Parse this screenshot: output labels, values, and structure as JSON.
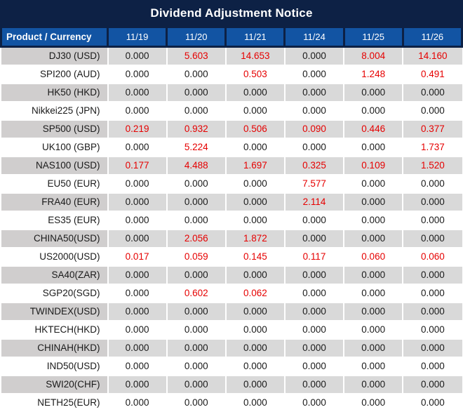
{
  "title": "Dividend Adjustment Notice",
  "colors": {
    "banner_bg": "#0d2145",
    "header_bg": "#1254a3",
    "row_gray": "#d9d9d9",
    "label_gray": "#d0cece",
    "red": "#e60000",
    "text": "#1a1a1a"
  },
  "chart_data": {
    "type": "table",
    "title": "Dividend Adjustment Notice",
    "columns": [
      "Product / Currency",
      "11/19",
      "11/20",
      "11/21",
      "11/24",
      "11/25",
      "11/26"
    ],
    "highlight_color": "#e60000",
    "highlight_meaning": "non-zero dividend adjustment values shown in red",
    "rows": [
      {
        "product": "DJ30 (USD)",
        "values": [
          "0.000",
          "5.603",
          "14.653",
          "0.000",
          "8.004",
          "14.160"
        ],
        "red": [
          false,
          true,
          true,
          false,
          true,
          true
        ]
      },
      {
        "product": "SPI200 (AUD)",
        "values": [
          "0.000",
          "0.000",
          "0.503",
          "0.000",
          "1.248",
          "0.491"
        ],
        "red": [
          false,
          false,
          true,
          false,
          true,
          true
        ]
      },
      {
        "product": "HK50 (HKD)",
        "values": [
          "0.000",
          "0.000",
          "0.000",
          "0.000",
          "0.000",
          "0.000"
        ],
        "red": [
          false,
          false,
          false,
          false,
          false,
          false
        ]
      },
      {
        "product": "Nikkei225 (JPN)",
        "values": [
          "0.000",
          "0.000",
          "0.000",
          "0.000",
          "0.000",
          "0.000"
        ],
        "red": [
          false,
          false,
          false,
          false,
          false,
          false
        ]
      },
      {
        "product": "SP500 (USD)",
        "values": [
          "0.219",
          "0.932",
          "0.506",
          "0.090",
          "0.446",
          "0.377"
        ],
        "red": [
          true,
          true,
          true,
          true,
          true,
          true
        ]
      },
      {
        "product": "UK100 (GBP)",
        "values": [
          "0.000",
          "5.224",
          "0.000",
          "0.000",
          "0.000",
          "1.737"
        ],
        "red": [
          false,
          true,
          false,
          false,
          false,
          true
        ]
      },
      {
        "product": "NAS100 (USD)",
        "values": [
          "0.177",
          "4.488",
          "1.697",
          "0.325",
          "0.109",
          "1.520"
        ],
        "red": [
          true,
          true,
          true,
          true,
          true,
          true
        ]
      },
      {
        "product": "EU50 (EUR)",
        "values": [
          "0.000",
          "0.000",
          "0.000",
          "7.577",
          "0.000",
          "0.000"
        ],
        "red": [
          false,
          false,
          false,
          true,
          false,
          false
        ]
      },
      {
        "product": "FRA40 (EUR)",
        "values": [
          "0.000",
          "0.000",
          "0.000",
          "2.114",
          "0.000",
          "0.000"
        ],
        "red": [
          false,
          false,
          false,
          true,
          false,
          false
        ]
      },
      {
        "product": "ES35 (EUR)",
        "values": [
          "0.000",
          "0.000",
          "0.000",
          "0.000",
          "0.000",
          "0.000"
        ],
        "red": [
          false,
          false,
          false,
          false,
          false,
          false
        ]
      },
      {
        "product": "CHINA50(USD)",
        "values": [
          "0.000",
          "2.056",
          "1.872",
          "0.000",
          "0.000",
          "0.000"
        ],
        "red": [
          false,
          true,
          true,
          false,
          false,
          false
        ]
      },
      {
        "product": "US2000(USD)",
        "values": [
          "0.017",
          "0.059",
          "0.145",
          "0.117",
          "0.060",
          "0.060"
        ],
        "red": [
          true,
          true,
          true,
          true,
          true,
          true
        ]
      },
      {
        "product": "SA40(ZAR)",
        "values": [
          "0.000",
          "0.000",
          "0.000",
          "0.000",
          "0.000",
          "0.000"
        ],
        "red": [
          false,
          false,
          false,
          false,
          false,
          false
        ]
      },
      {
        "product": "SGP20(SGD)",
        "values": [
          "0.000",
          "0.602",
          "0.062",
          "0.000",
          "0.000",
          "0.000"
        ],
        "red": [
          false,
          true,
          true,
          false,
          false,
          false
        ]
      },
      {
        "product": "TWINDEX(USD)",
        "values": [
          "0.000",
          "0.000",
          "0.000",
          "0.000",
          "0.000",
          "0.000"
        ],
        "red": [
          false,
          false,
          false,
          false,
          false,
          false
        ]
      },
      {
        "product": "HKTECH(HKD)",
        "values": [
          "0.000",
          "0.000",
          "0.000",
          "0.000",
          "0.000",
          "0.000"
        ],
        "red": [
          false,
          false,
          false,
          false,
          false,
          false
        ]
      },
      {
        "product": "CHINAH(HKD)",
        "values": [
          "0.000",
          "0.000",
          "0.000",
          "0.000",
          "0.000",
          "0.000"
        ],
        "red": [
          false,
          false,
          false,
          false,
          false,
          false
        ]
      },
      {
        "product": "IND50(USD)",
        "values": [
          "0.000",
          "0.000",
          "0.000",
          "0.000",
          "0.000",
          "0.000"
        ],
        "red": [
          false,
          false,
          false,
          false,
          false,
          false
        ]
      },
      {
        "product": "SWI20(CHF)",
        "values": [
          "0.000",
          "0.000",
          "0.000",
          "0.000",
          "0.000",
          "0.000"
        ],
        "red": [
          false,
          false,
          false,
          false,
          false,
          false
        ]
      },
      {
        "product": "NETH25(EUR)",
        "values": [
          "0.000",
          "0.000",
          "0.000",
          "0.000",
          "0.000",
          "0.000"
        ],
        "red": [
          false,
          false,
          false,
          false,
          false,
          false
        ]
      }
    ]
  }
}
